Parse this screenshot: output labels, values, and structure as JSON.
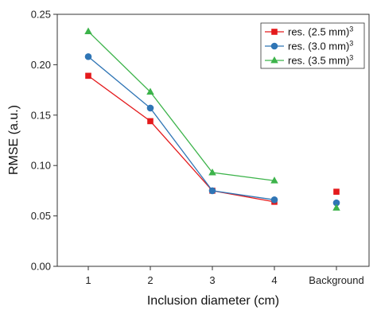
{
  "chart_data": {
    "type": "line",
    "xlabel": "Inclusion diameter (cm)",
    "ylabel": "RMSE (a.u.)",
    "categories": [
      "1",
      "2",
      "3",
      "4",
      "Background"
    ],
    "ylim": [
      0,
      0.25
    ],
    "yticks": [
      "0.00",
      "0.05",
      "0.10",
      "0.15",
      "0.20",
      "0.25"
    ],
    "grid": false,
    "legend_position": "top-right",
    "series": [
      {
        "name": "res. (2.5 mm)",
        "superscript": "3",
        "marker": "square",
        "color": "#e41a1c",
        "values": [
          0.189,
          0.144,
          0.075,
          0.064,
          0.074
        ]
      },
      {
        "name": "res. (3.0 mm)",
        "superscript": "3",
        "marker": "circle",
        "color": "#2f75b5",
        "values": [
          0.208,
          0.157,
          0.075,
          0.066,
          0.063
        ]
      },
      {
        "name": "res. (3.5 mm)",
        "superscript": "3",
        "marker": "triangle",
        "color": "#3cb34a",
        "values": [
          0.233,
          0.173,
          0.093,
          0.085,
          0.058
        ]
      }
    ],
    "connected_points": 4
  }
}
